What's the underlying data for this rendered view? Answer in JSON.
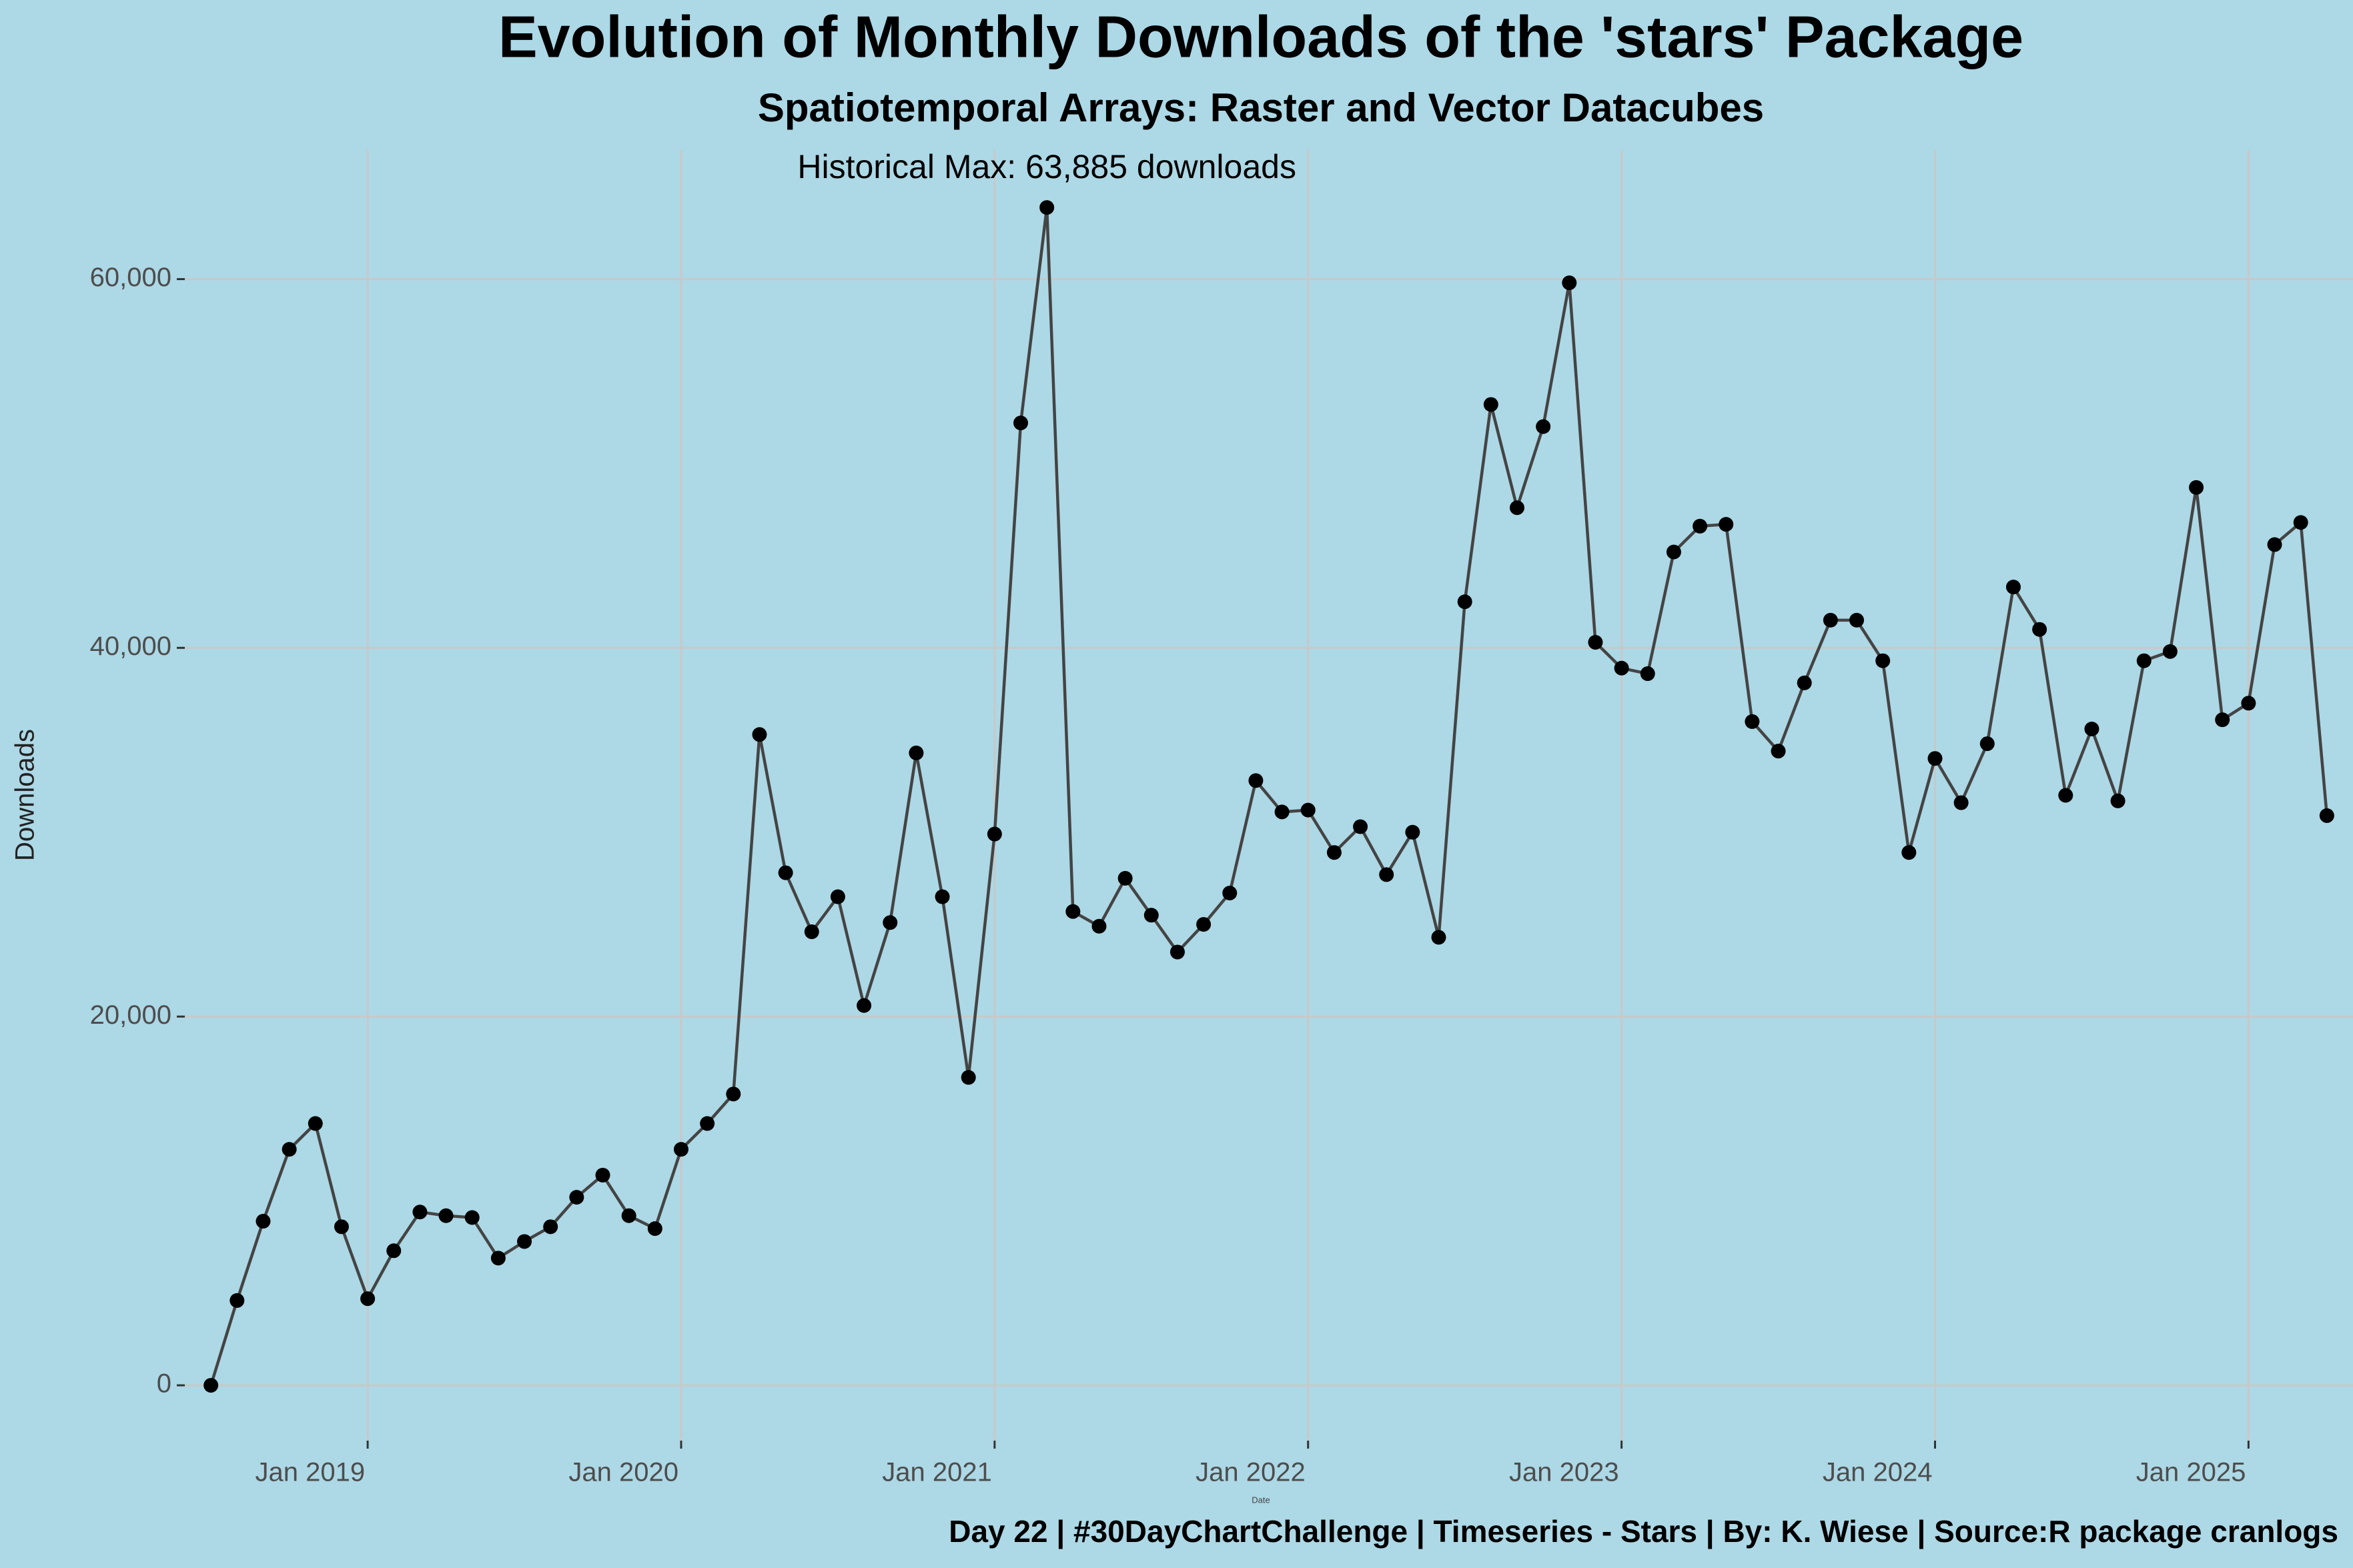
{
  "chart_data": {
    "type": "line",
    "title": "Evolution of Monthly Downloads of the 'stars' Package",
    "subtitle": "Spatiotemporal Arrays: Raster and Vector Datacubes",
    "y_label": "Downloads",
    "x_label": "Date",
    "caption": "Day 22 | #30DayChartChallenge | Timeseries - Stars | By: K. Wiese | Source:R package cranlogs",
    "annotation": "Historical Max: 63,885 downloads",
    "x": [
      "2018-07",
      "2018-08",
      "2018-09",
      "2018-10",
      "2018-11",
      "2018-12",
      "2019-01",
      "2019-02",
      "2019-03",
      "2019-04",
      "2019-05",
      "2019-06",
      "2019-07",
      "2019-08",
      "2019-09",
      "2019-10",
      "2019-11",
      "2019-12",
      "2020-01",
      "2020-02",
      "2020-03",
      "2020-04",
      "2020-05",
      "2020-06",
      "2020-07",
      "2020-08",
      "2020-09",
      "2020-10",
      "2020-11",
      "2020-12",
      "2021-01",
      "2021-02",
      "2021-03",
      "2021-04",
      "2021-05",
      "2021-06",
      "2021-07",
      "2021-08",
      "2021-09",
      "2021-10",
      "2021-11",
      "2021-12",
      "2022-01",
      "2022-02",
      "2022-03",
      "2022-04",
      "2022-05",
      "2022-06",
      "2022-07",
      "2022-08",
      "2022-09",
      "2022-10",
      "2022-11",
      "2022-12",
      "2023-01",
      "2023-02",
      "2023-03",
      "2023-04",
      "2023-05",
      "2023-06",
      "2023-07",
      "2023-08",
      "2023-09",
      "2023-10",
      "2023-11",
      "2023-12",
      "2024-01",
      "2024-02",
      "2024-03",
      "2024-04",
      "2024-05",
      "2024-06",
      "2024-07",
      "2024-08",
      "2024-09",
      "2024-10",
      "2024-11",
      "2024-12",
      "2025-01",
      "2025-02",
      "2025-03",
      "2025-04"
    ],
    "series": [
      {
        "name": "Downloads",
        "color": "#444444",
        "marker_color": "#000000",
        "values": [
          0,
          4600,
          8900,
          12800,
          14200,
          8600,
          4700,
          7300,
          9400,
          9200,
          9100,
          6900,
          7800,
          8600,
          10200,
          11400,
          9200,
          8500,
          12800,
          14200,
          15800,
          35300,
          27800,
          24600,
          26500,
          20600,
          25100,
          34300,
          26500,
          16700,
          29900,
          52200,
          63885,
          25700,
          24900,
          27500,
          25500,
          23500,
          25000,
          26700,
          32800,
          31100,
          31200,
          28900,
          30300,
          27700,
          30000,
          24300,
          42500,
          53200,
          47600,
          52000,
          59800,
          40300,
          38900,
          38600,
          45200,
          46600,
          46700,
          36000,
          34400,
          38100,
          41500,
          41500,
          39300,
          28900,
          34000,
          31600,
          34800,
          43300,
          41000,
          32000,
          35600,
          31700,
          39300,
          39800,
          48700,
          36100,
          37000,
          45600,
          46800,
          30900
        ]
      }
    ],
    "xlim": [
      "2018-06",
      "2025-05"
    ],
    "xticks": [
      {
        "value": "2019-01",
        "label": "Jan 2019"
      },
      {
        "value": "2020-01",
        "label": "Jan 2020"
      },
      {
        "value": "2021-01",
        "label": "Jan 2021"
      },
      {
        "value": "2022-01",
        "label": "Jan 2022"
      },
      {
        "value": "2023-01",
        "label": "Jan 2023"
      },
      {
        "value": "2024-01",
        "label": "Jan 2024"
      },
      {
        "value": "2025-01",
        "label": "Jan 2025"
      }
    ],
    "ylim": [
      -3000,
      67000
    ],
    "yticks": [
      0,
      {
        "value": 20000,
        "label": "20,000"
      },
      {
        "value": 40000,
        "label": "40,000"
      },
      {
        "value": 60000,
        "label": "60,000"
      }
    ],
    "grid": true
  }
}
